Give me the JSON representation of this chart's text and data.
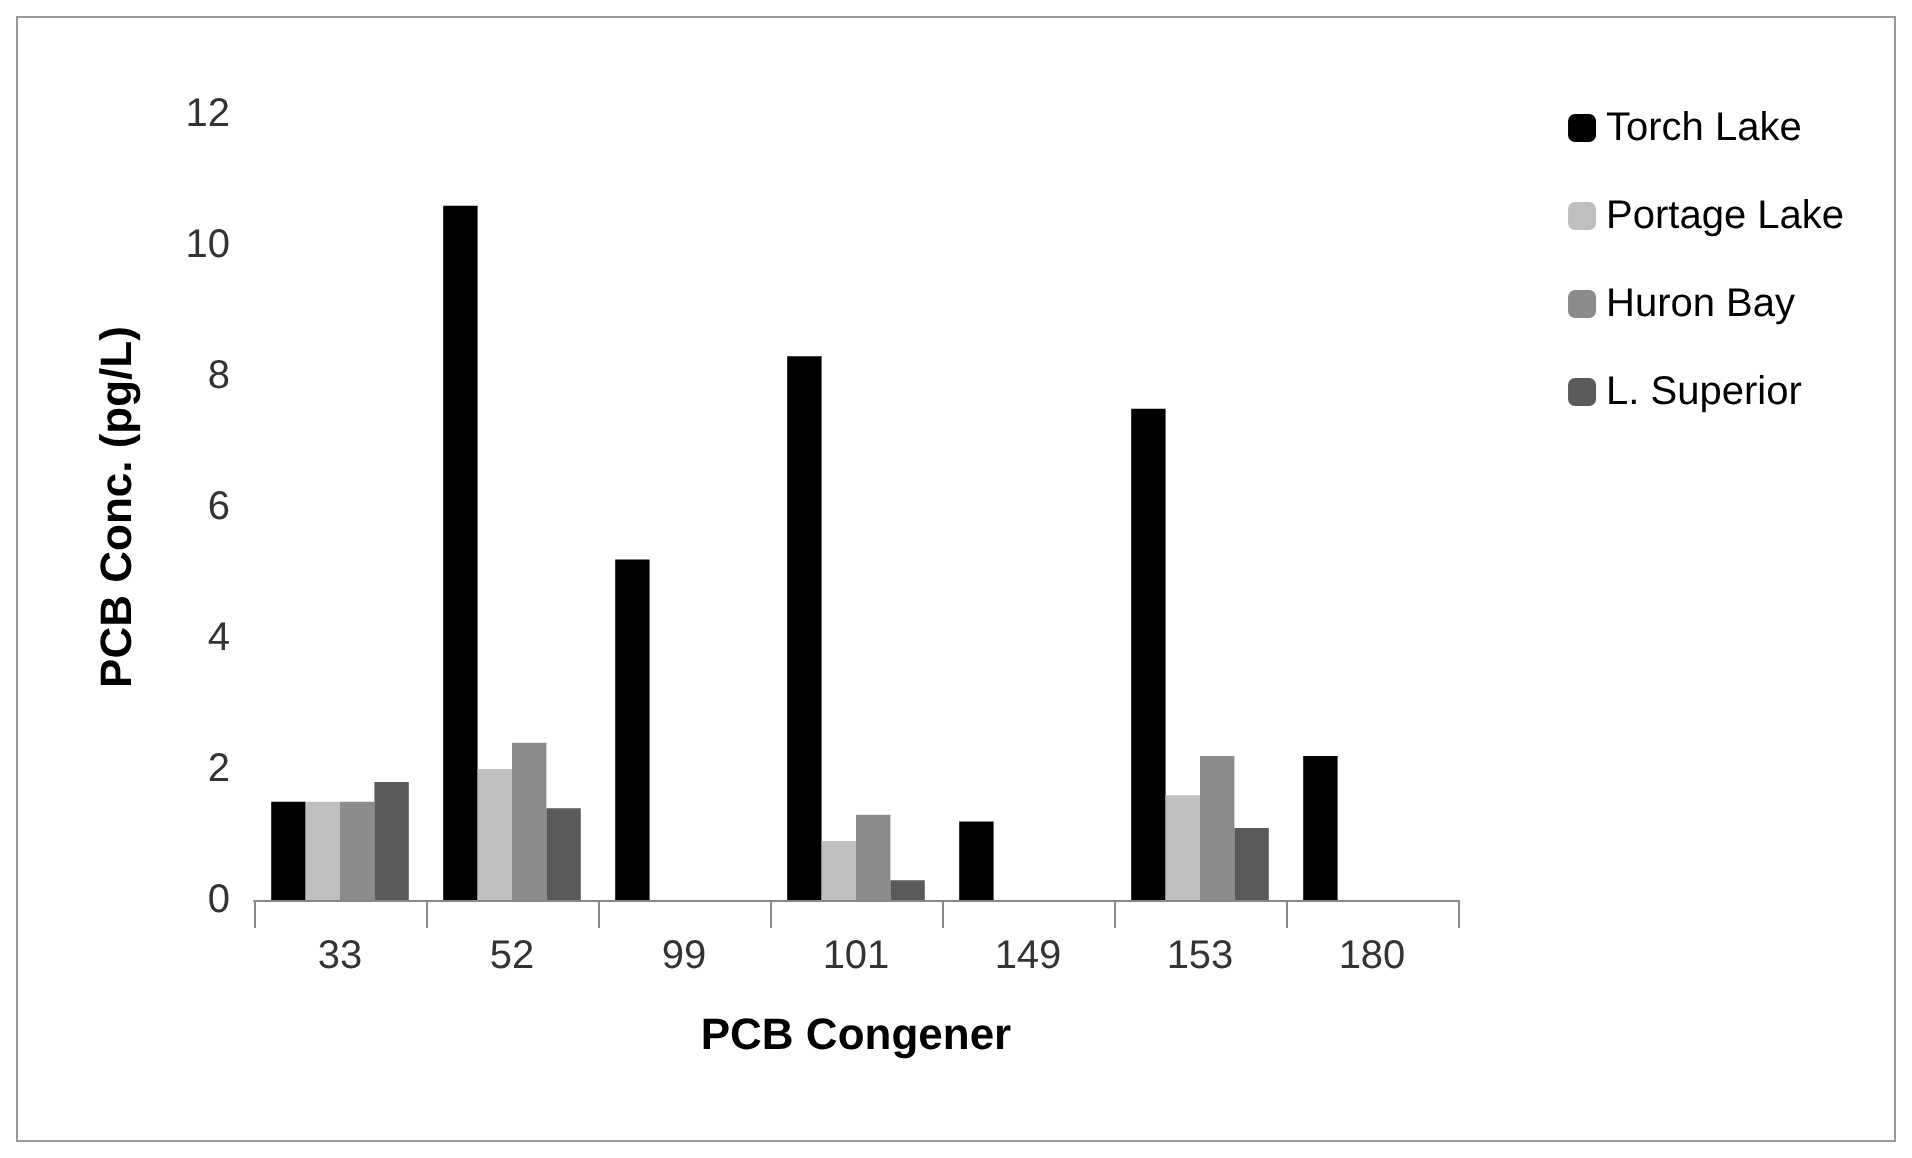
{
  "chart_data": {
    "type": "bar",
    "xlabel": "PCB Congener",
    "ylabel": "PCB Conc. (pg/L)",
    "categories": [
      "33",
      "52",
      "99",
      "101",
      "149",
      "153",
      "180"
    ],
    "series": [
      {
        "name": "Torch Lake",
        "color": "#000000",
        "values": [
          1.5,
          10.6,
          5.2,
          8.3,
          1.2,
          7.5,
          2.2
        ]
      },
      {
        "name": "Portage Lake",
        "color": "#bfbfbf",
        "values": [
          1.5,
          2.0,
          null,
          0.9,
          null,
          1.6,
          null
        ]
      },
      {
        "name": "Huron Bay",
        "color": "#8c8c8c",
        "values": [
          1.5,
          2.4,
          null,
          1.3,
          null,
          2.2,
          null
        ]
      },
      {
        "name": "L. Superior",
        "color": "#5a5a5a",
        "values": [
          1.8,
          1.4,
          null,
          0.3,
          null,
          1.1,
          null
        ]
      }
    ],
    "ylim": [
      0,
      12
    ],
    "yticks": [
      0,
      2,
      4,
      6,
      8,
      10,
      12
    ],
    "grid": false,
    "legend": "right"
  }
}
